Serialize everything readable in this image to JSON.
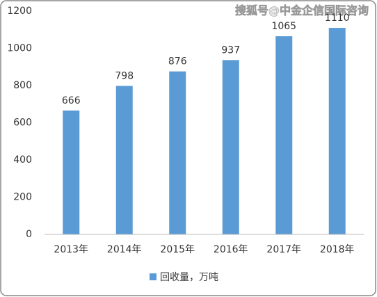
{
  "chart_data": {
    "type": "bar",
    "watermark": "搜狐号@中金企信国际咨询",
    "categories": [
      "2013年",
      "2014年",
      "2015年",
      "2016年",
      "2017年",
      "2018年"
    ],
    "series": [
      {
        "name": "回收量，万吨",
        "color": "#5b9bd5",
        "values": [
          666,
          798,
          876,
          937,
          1065,
          1110
        ]
      }
    ],
    "ylim": [
      0,
      1200
    ],
    "yticks": [
      0,
      200,
      400,
      600,
      800,
      1000,
      1200
    ],
    "grid": false,
    "legend": "bottom"
  }
}
